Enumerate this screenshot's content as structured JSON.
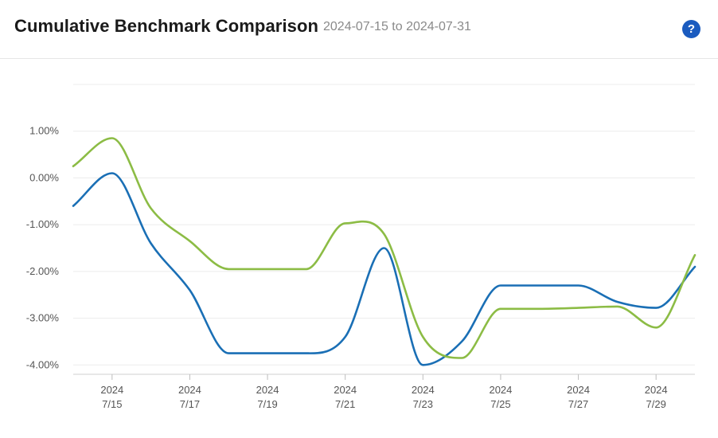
{
  "header": {
    "title": "Cumulative Benchmark Comparison",
    "date_range": "2024-07-15 to 2024-07-31",
    "help_glyph": "?"
  },
  "colors": {
    "series_blue": "#1a6fb5",
    "series_green": "#8cbc45",
    "help_button": "#1a5bbf"
  },
  "chart_data": {
    "type": "line",
    "x": [
      "2024-07-14",
      "2024-07-15",
      "2024-07-16",
      "2024-07-17",
      "2024-07-18",
      "2024-07-19",
      "2024-07-20",
      "2024-07-21",
      "2024-07-22",
      "2024-07-23",
      "2024-07-24",
      "2024-07-25",
      "2024-07-26",
      "2024-07-27",
      "2024-07-28",
      "2024-07-29",
      "2024-07-30"
    ],
    "series": [
      {
        "values": [
          -0.6,
          0.1,
          -1.4,
          -2.4,
          -3.75,
          -3.75,
          -3.75,
          -3.4,
          -1.5,
          -4.0,
          -3.5,
          -2.3,
          -2.3,
          -2.3,
          -2.65,
          -2.78,
          -1.9
        ]
      },
      {
        "values": [
          0.25,
          0.85,
          -0.65,
          -1.35,
          -1.95,
          -1.95,
          -1.95,
          -0.97,
          -1.2,
          -3.4,
          -3.85,
          -2.8,
          -2.8,
          -2.78,
          -2.75,
          -3.2,
          -1.65
        ]
      }
    ],
    "y_ticks": [
      "1.00%",
      "0.00%",
      "-1.00%",
      "-2.00%",
      "-3.00%",
      "-4.00%"
    ],
    "y_tick_values": [
      1,
      0,
      -1,
      -2,
      -3,
      -4
    ],
    "x_ticks": [
      {
        "date": "2024-07-15",
        "year": "2024",
        "day": "7/15"
      },
      {
        "date": "2024-07-17",
        "year": "2024",
        "day": "7/17"
      },
      {
        "date": "2024-07-19",
        "year": "2024",
        "day": "7/19"
      },
      {
        "date": "2024-07-21",
        "year": "2024",
        "day": "7/21"
      },
      {
        "date": "2024-07-23",
        "year": "2024",
        "day": "7/23"
      },
      {
        "date": "2024-07-25",
        "year": "2024",
        "day": "7/25"
      },
      {
        "date": "2024-07-27",
        "year": "2024",
        "day": "7/27"
      },
      {
        "date": "2024-07-29",
        "year": "2024",
        "day": "7/29"
      }
    ],
    "ylim": [
      -4.2,
      2.0
    ],
    "grid": true
  }
}
